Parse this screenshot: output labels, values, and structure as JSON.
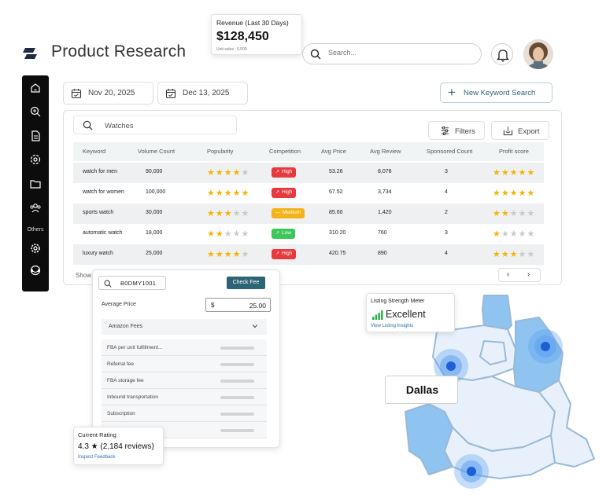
{
  "header": {
    "title": "Product Research",
    "search_placeholder": "Search..."
  },
  "revenue": {
    "label": "Revenue (Last 30 Days)",
    "value": "$128,450",
    "sub": "Unit sales : 5,000"
  },
  "sidebar": {
    "others_label": "Others",
    "icons": [
      "home-icon",
      "zoom-icon",
      "document-icon",
      "settings-gear-icon",
      "folder-icon",
      "users-icon",
      "gear-icon",
      "support-icon"
    ]
  },
  "dates": {
    "start": "Nov 20, 2025",
    "end": "Dec 13, 2025"
  },
  "new_keyword_label": "New Keyword Search",
  "table": {
    "search_value": "Watches",
    "filters_label": "Filters",
    "export_label": "Export",
    "columns": [
      "Keyword",
      "Volume Count",
      "Popularity",
      "Competition",
      "Avg Price",
      "Avg Review",
      "Sponsored Count",
      "Profit score"
    ],
    "rows": [
      {
        "keyword": "watch for men",
        "volume": "90,000",
        "popularity": 4,
        "competition": "High",
        "price": "53.26",
        "review": "8,078",
        "sponsored": "3",
        "profit": 5
      },
      {
        "keyword": "watch for women",
        "volume": "100,000",
        "popularity": 5,
        "competition": "High",
        "price": "67.52",
        "review": "3,734",
        "sponsored": "4",
        "profit": 5
      },
      {
        "keyword": "sports watch",
        "volume": "30,000",
        "popularity": 3,
        "competition": "Medium",
        "price": "85.60",
        "review": "1,420",
        "sponsored": "2",
        "profit": 2
      },
      {
        "keyword": "automatic watch",
        "volume": "18,000",
        "popularity": 2,
        "competition": "Low",
        "price": "310.20",
        "review": "760",
        "sponsored": "3",
        "profit": 1
      },
      {
        "keyword": "luxury watch",
        "volume": "25,000",
        "popularity": 4,
        "competition": "High",
        "price": "420.75",
        "review": "890",
        "sponsored": "4",
        "profit": 3
      }
    ],
    "competition_colors": {
      "High": "#e8393f",
      "Medium": "#f2b418",
      "Low": "#3cc75a"
    },
    "show_text": "Show"
  },
  "fee": {
    "asin": "B0DMY1001",
    "check_label": "Check Fee",
    "avg_label": "Average Price",
    "currency": "$",
    "price": "25.00",
    "section_label": "Amazon Fees",
    "items": [
      "FBA per unit fulfillment...",
      "Referral fee",
      "FBA storage fee",
      "Inbound transportation",
      "Subscription",
      ""
    ]
  },
  "rating": {
    "label": "Current Rating",
    "value": "4.3 ★ (2,184 reviews)",
    "link": "Inspect Feedback"
  },
  "strength": {
    "label": "Listing Strength Meter",
    "value": "Excellent",
    "link": "View Listing Insights"
  },
  "map": {
    "city": "Dallas"
  },
  "colors": {
    "accent": "#2d6577",
    "star": "#f5b400",
    "map_fill": "#e8f1fb",
    "map_highlight": "#8fc3f0",
    "map_stroke": "#9ab8d8"
  }
}
